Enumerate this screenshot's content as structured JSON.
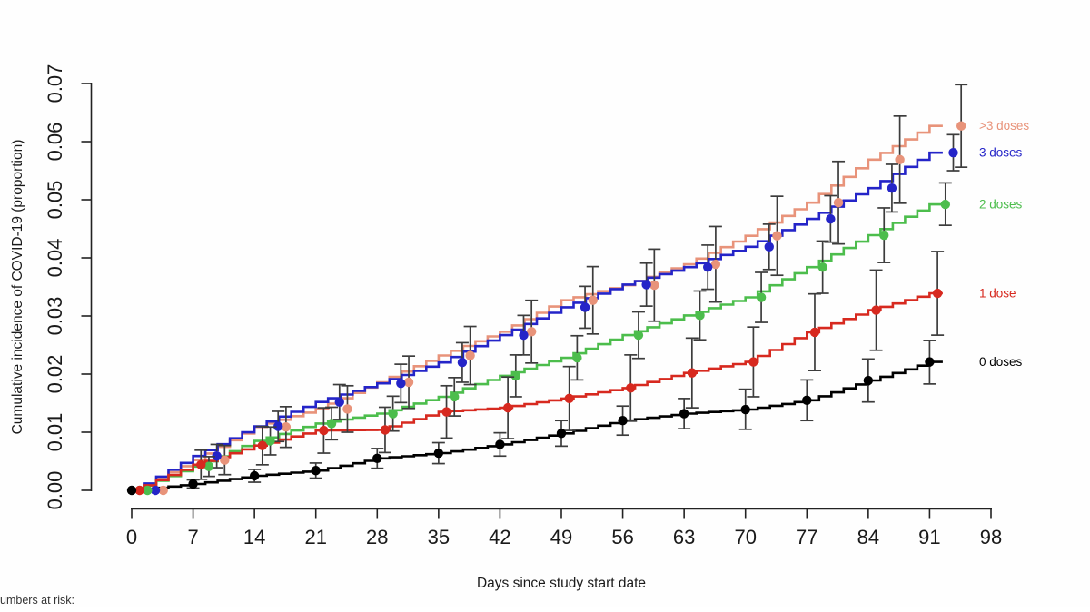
{
  "figure": {
    "footer_note": "Numbers at risk:"
  },
  "chart_data": {
    "type": "line",
    "subtype": "kaplan-meier-cumulative-incidence-with-ci-points",
    "title": "",
    "xlabel": "Days since study start date",
    "ylabel": "Cumulative incidence of COVID-19 (proportion)",
    "xlim": [
      0,
      98
    ],
    "ylim": [
      0,
      0.07
    ],
    "x_ticks": [
      0,
      7,
      14,
      21,
      28,
      35,
      42,
      49,
      56,
      63,
      70,
      77,
      84,
      91,
      98
    ],
    "y_tick_labels": [
      "0.00",
      "0.01",
      "0.02",
      "0.03",
      "0.04",
      "0.05",
      "0.06",
      "0.07"
    ],
    "grid": false,
    "legend_position": "right-of-curve-endpoints",
    "ci_color": "#3c3c3c",
    "point_interval_days": 7,
    "series": [
      {
        "name": ">3 doses",
        "key": "gt3-doses",
        "color": "#E8937A",
        "jitter_days": 3.6,
        "points": [
          [
            0,
            0,
            0,
            0
          ],
          [
            7,
            0.0052,
            0.0027,
            0.0077
          ],
          [
            14,
            0.0109,
            0.0074,
            0.0144
          ],
          [
            21,
            0.014,
            0.01,
            0.018
          ],
          [
            28,
            0.0186,
            0.0141,
            0.0231
          ],
          [
            35,
            0.0232,
            0.0182,
            0.0282
          ],
          [
            42,
            0.0273,
            0.0219,
            0.0327
          ],
          [
            49,
            0.0327,
            0.0269,
            0.0385
          ],
          [
            56,
            0.0353,
            0.0291,
            0.0415
          ],
          [
            63,
            0.0389,
            0.0324,
            0.0454
          ],
          [
            70,
            0.0438,
            0.037,
            0.0506
          ],
          [
            77,
            0.0495,
            0.0424,
            0.0566
          ],
          [
            84,
            0.0569,
            0.0494,
            0.0644
          ],
          [
            91,
            0.0627,
            0.0556,
            0.0698
          ]
        ]
      },
      {
        "name": "3 doses",
        "key": "3-doses",
        "color": "#2424C8",
        "jitter_days": 2.7,
        "points": [
          [
            0,
            0,
            0,
            0
          ],
          [
            7,
            0.0059,
            0.0039,
            0.0079
          ],
          [
            14,
            0.011,
            0.0084,
            0.0136
          ],
          [
            21,
            0.0152,
            0.0122,
            0.0182
          ],
          [
            28,
            0.0184,
            0.0151,
            0.0217
          ],
          [
            35,
            0.022,
            0.0186,
            0.0254
          ],
          [
            42,
            0.0267,
            0.0233,
            0.0301
          ],
          [
            49,
            0.0315,
            0.0279,
            0.0351
          ],
          [
            56,
            0.0354,
            0.0317,
            0.0391
          ],
          [
            63,
            0.0384,
            0.0346,
            0.0422
          ],
          [
            70,
            0.0419,
            0.038,
            0.0458
          ],
          [
            77,
            0.0467,
            0.0427,
            0.0507
          ],
          [
            84,
            0.052,
            0.0479,
            0.0561
          ],
          [
            91,
            0.0581,
            0.055,
            0.0612
          ]
        ]
      },
      {
        "name": "2 doses",
        "key": "2-doses",
        "color": "#4CBD4C",
        "jitter_days": 1.8,
        "points": [
          [
            0,
            0,
            0,
            0
          ],
          [
            7,
            0.0041,
            0.0024,
            0.0058
          ],
          [
            14,
            0.0085,
            0.0061,
            0.0109
          ],
          [
            21,
            0.0115,
            0.0087,
            0.0143
          ],
          [
            28,
            0.0132,
            0.0102,
            0.0162
          ],
          [
            35,
            0.0161,
            0.0128,
            0.0194
          ],
          [
            42,
            0.0197,
            0.0161,
            0.0233
          ],
          [
            49,
            0.0228,
            0.019,
            0.0266
          ],
          [
            56,
            0.0267,
            0.0227,
            0.0307
          ],
          [
            63,
            0.0301,
            0.0259,
            0.0343
          ],
          [
            70,
            0.0332,
            0.0289,
            0.0375
          ],
          [
            77,
            0.0384,
            0.0339,
            0.0429
          ],
          [
            84,
            0.0439,
            0.0392,
            0.0486
          ],
          [
            91,
            0.0492,
            0.0456,
            0.0529
          ]
        ]
      },
      {
        "name": "1 dose",
        "key": "1-dose",
        "color": "#D7291F",
        "jitter_days": 0.9,
        "points": [
          [
            0,
            0,
            0,
            0
          ],
          [
            7,
            0.0044,
            0.0019,
            0.0069
          ],
          [
            14,
            0.0077,
            0.0044,
            0.011
          ],
          [
            21,
            0.0103,
            0.0064,
            0.0142
          ],
          [
            28,
            0.0104,
            0.0065,
            0.0143
          ],
          [
            35,
            0.0135,
            0.009,
            0.018
          ],
          [
            42,
            0.0142,
            0.0089,
            0.0195
          ],
          [
            49,
            0.0158,
            0.0103,
            0.0213
          ],
          [
            56,
            0.0176,
            0.0119,
            0.0233
          ],
          [
            63,
            0.0202,
            0.0142,
            0.0262
          ],
          [
            70,
            0.0221,
            0.0161,
            0.0281
          ],
          [
            77,
            0.0272,
            0.0206,
            0.0338
          ],
          [
            84,
            0.031,
            0.0241,
            0.0379
          ],
          [
            91,
            0.0339,
            0.0267,
            0.0411
          ]
        ]
      },
      {
        "name": "0 doses",
        "key": "0-doses",
        "color": "#000000",
        "jitter_days": 0,
        "points": [
          [
            0,
            0,
            0,
            0
          ],
          [
            7,
            0.0011,
            0.0004,
            0.0018
          ],
          [
            14,
            0.0025,
            0.0014,
            0.0036
          ],
          [
            21,
            0.0034,
            0.0021,
            0.0047
          ],
          [
            28,
            0.0055,
            0.0038,
            0.0072
          ],
          [
            35,
            0.0064,
            0.0046,
            0.0082
          ],
          [
            42,
            0.0079,
            0.0059,
            0.0099
          ],
          [
            49,
            0.0098,
            0.0076,
            0.012
          ],
          [
            56,
            0.012,
            0.0095,
            0.0145
          ],
          [
            63,
            0.0132,
            0.0106,
            0.0158
          ],
          [
            70,
            0.0139,
            0.0105,
            0.0174
          ],
          [
            77,
            0.0155,
            0.012,
            0.019
          ],
          [
            84,
            0.0189,
            0.0152,
            0.0226
          ],
          [
            91,
            0.0221,
            0.0183,
            0.0258
          ]
        ]
      }
    ]
  }
}
